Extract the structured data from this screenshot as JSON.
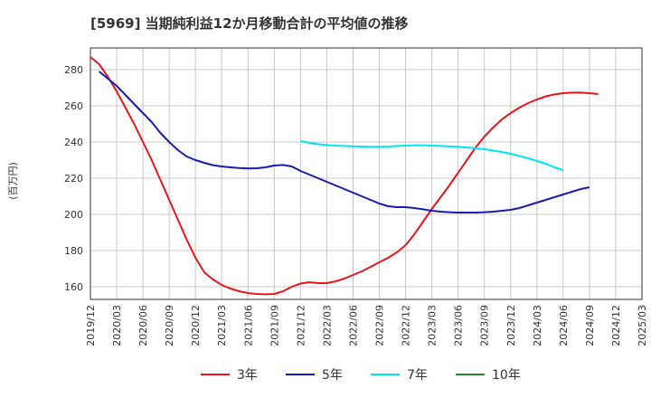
{
  "chart_data": {
    "type": "line",
    "title": "[5969]  当期純利益12か月移動合計の平均値の推移",
    "ylabel": "(百万円)",
    "xlabel": "",
    "ylim": [
      153,
      292
    ],
    "yticks": [
      160,
      180,
      200,
      220,
      240,
      260,
      280
    ],
    "xlim": [
      "2019-12",
      "2025-03"
    ],
    "xtick_labels": [
      "2019/12",
      "2020/03",
      "2020/06",
      "2020/09",
      "2020/12",
      "2021/03",
      "2021/06",
      "2021/09",
      "2021/12",
      "2022/03",
      "2022/06",
      "2022/09",
      "2022/12",
      "2023/03",
      "2023/06",
      "2023/09",
      "2023/12",
      "2024/03",
      "2024/06",
      "2024/09",
      "2024/12",
      "2025/03"
    ],
    "grid": true,
    "legend_position": "bottom",
    "series": [
      {
        "name": "3年",
        "color": "#e8151b",
        "points": [
          [
            "2019-12",
            287
          ],
          [
            "2020-01",
            283
          ],
          [
            "2020-02",
            276
          ],
          [
            "2020-03",
            268
          ],
          [
            "2020-04",
            259
          ],
          [
            "2020-05",
            250
          ],
          [
            "2020-06",
            240
          ],
          [
            "2020-07",
            230
          ],
          [
            "2020-08",
            219
          ],
          [
            "2020-09",
            208
          ],
          [
            "2020-10",
            197
          ],
          [
            "2020-11",
            186
          ],
          [
            "2020-12",
            176
          ],
          [
            "2021-01",
            168
          ],
          [
            "2021-02",
            164
          ],
          [
            "2021-03",
            161
          ],
          [
            "2021-04",
            159
          ],
          [
            "2021-05",
            157.5
          ],
          [
            "2021-06",
            156.5
          ],
          [
            "2021-07",
            156
          ],
          [
            "2021-08",
            155.8
          ],
          [
            "2021-09",
            156
          ],
          [
            "2021-10",
            157.5
          ],
          [
            "2021-11",
            160
          ],
          [
            "2021-12",
            161.8
          ],
          [
            "2022-01",
            162.5
          ],
          [
            "2022-02",
            162
          ],
          [
            "2022-03",
            162
          ],
          [
            "2022-04",
            163
          ],
          [
            "2022-05",
            164.5
          ],
          [
            "2022-06",
            166.5
          ],
          [
            "2022-07",
            168.5
          ],
          [
            "2022-08",
            171
          ],
          [
            "2022-09",
            173.5
          ],
          [
            "2022-10",
            176
          ],
          [
            "2022-11",
            179
          ],
          [
            "2022-12",
            183
          ],
          [
            "2023-01",
            189
          ],
          [
            "2023-02",
            196
          ],
          [
            "2023-03",
            203
          ],
          [
            "2023-04",
            209.5
          ],
          [
            "2023-05",
            216
          ],
          [
            "2023-06",
            223
          ],
          [
            "2023-07",
            230
          ],
          [
            "2023-08",
            237
          ],
          [
            "2023-09",
            243
          ],
          [
            "2023-10",
            248
          ],
          [
            "2023-11",
            252.5
          ],
          [
            "2023-12",
            256
          ],
          [
            "2024-01",
            259
          ],
          [
            "2024-02",
            261.5
          ],
          [
            "2024-03",
            263.5
          ],
          [
            "2024-04",
            265.2
          ],
          [
            "2024-05",
            266.3
          ],
          [
            "2024-06",
            267
          ],
          [
            "2024-07",
            267.3
          ],
          [
            "2024-08",
            267.3
          ],
          [
            "2024-09",
            267
          ],
          [
            "2024-10",
            266.5
          ]
        ]
      },
      {
        "name": "5年",
        "color": "#1a1ab4",
        "points": [
          [
            "2020-01",
            279
          ],
          [
            "2020-02",
            275
          ],
          [
            "2020-03",
            271
          ],
          [
            "2020-04",
            266
          ],
          [
            "2020-05",
            261
          ],
          [
            "2020-06",
            256
          ],
          [
            "2020-07",
            251
          ],
          [
            "2020-08",
            245
          ],
          [
            "2020-09",
            240
          ],
          [
            "2020-10",
            235.5
          ],
          [
            "2020-11",
            232
          ],
          [
            "2020-12",
            230
          ],
          [
            "2021-01",
            228.5
          ],
          [
            "2021-02",
            227.2
          ],
          [
            "2021-03",
            226.5
          ],
          [
            "2021-04",
            226
          ],
          [
            "2021-05",
            225.6
          ],
          [
            "2021-06",
            225.4
          ],
          [
            "2021-07",
            225.5
          ],
          [
            "2021-08",
            226
          ],
          [
            "2021-09",
            227
          ],
          [
            "2021-10",
            227.3
          ],
          [
            "2021-11",
            226.5
          ],
          [
            "2021-12",
            224
          ],
          [
            "2022-01",
            222
          ],
          [
            "2022-02",
            220
          ],
          [
            "2022-03",
            218
          ],
          [
            "2022-04",
            216
          ],
          [
            "2022-05",
            214
          ],
          [
            "2022-06",
            212
          ],
          [
            "2022-07",
            210
          ],
          [
            "2022-08",
            208
          ],
          [
            "2022-09",
            206
          ],
          [
            "2022-10",
            204.5
          ],
          [
            "2022-11",
            204
          ],
          [
            "2022-12",
            204
          ],
          [
            "2023-01",
            203.5
          ],
          [
            "2023-02",
            202.8
          ],
          [
            "2023-03",
            202
          ],
          [
            "2023-04",
            201.5
          ],
          [
            "2023-05",
            201.2
          ],
          [
            "2023-06",
            201
          ],
          [
            "2023-07",
            201
          ],
          [
            "2023-08",
            201
          ],
          [
            "2023-09",
            201.2
          ],
          [
            "2023-10",
            201.5
          ],
          [
            "2023-11",
            202
          ],
          [
            "2023-12",
            202.5
          ],
          [
            "2024-01",
            203.5
          ],
          [
            "2024-02",
            205
          ],
          [
            "2024-03",
            206.5
          ],
          [
            "2024-04",
            208
          ],
          [
            "2024-05",
            209.5
          ],
          [
            "2024-06",
            211
          ],
          [
            "2024-07",
            212.5
          ],
          [
            "2024-08",
            214
          ],
          [
            "2024-09",
            215
          ]
        ]
      },
      {
        "name": "7年",
        "color": "#00e6f0",
        "points": [
          [
            "2021-12",
            240.5
          ],
          [
            "2022-01",
            239.5
          ],
          [
            "2022-02",
            238.8
          ],
          [
            "2022-03",
            238.3
          ],
          [
            "2022-04",
            238
          ],
          [
            "2022-05",
            237.8
          ],
          [
            "2022-06",
            237.6
          ],
          [
            "2022-07",
            237.5
          ],
          [
            "2022-08",
            237.4
          ],
          [
            "2022-09",
            237.4
          ],
          [
            "2022-10",
            237.5
          ],
          [
            "2022-11",
            237.8
          ],
          [
            "2022-12",
            238
          ],
          [
            "2023-01",
            238.2
          ],
          [
            "2023-02",
            238.2
          ],
          [
            "2023-03",
            238
          ],
          [
            "2023-04",
            237.8
          ],
          [
            "2023-05",
            237.6
          ],
          [
            "2023-06",
            237.3
          ],
          [
            "2023-07",
            237
          ],
          [
            "2023-08",
            236.5
          ],
          [
            "2023-09",
            236
          ],
          [
            "2023-10",
            235.3
          ],
          [
            "2023-11",
            234.5
          ],
          [
            "2023-12",
            233.5
          ],
          [
            "2024-01",
            232.3
          ],
          [
            "2024-02",
            231
          ],
          [
            "2024-03",
            229.5
          ],
          [
            "2024-04",
            228
          ],
          [
            "2024-05",
            226
          ],
          [
            "2024-06",
            224.5
          ]
        ]
      },
      {
        "name": "10年",
        "color": "#228b22",
        "points": []
      }
    ]
  }
}
